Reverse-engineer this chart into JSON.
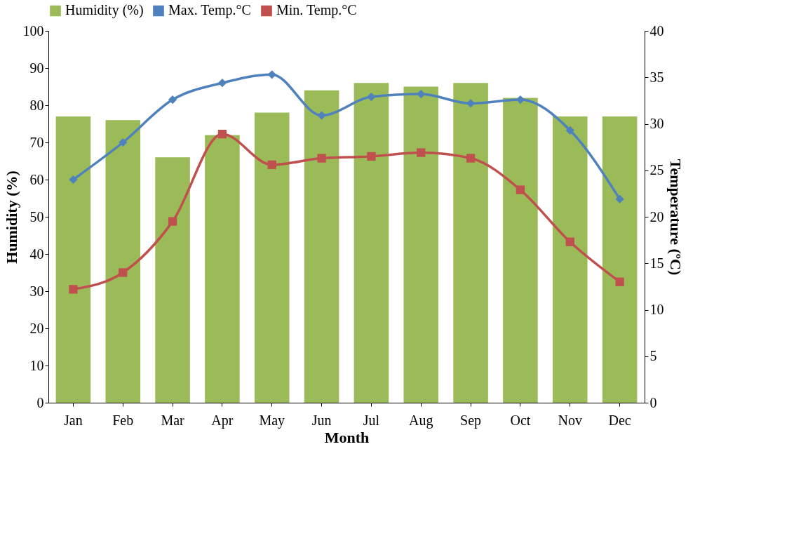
{
  "chart_data": {
    "type": "bar",
    "xlabel": "Month",
    "ylabel": "Humidity (%)",
    "y2label": "Temperature (ºC)",
    "categories": [
      "Jan",
      "Feb",
      "Mar",
      "Apr",
      "May",
      "Jun",
      "Jul",
      "Aug",
      "Sep",
      "Oct",
      "Nov",
      "Dec"
    ],
    "series": [
      {
        "name": "Humidity (%)",
        "color": "#9bbb59",
        "values": [
          77,
          76,
          66,
          72,
          78,
          84,
          86,
          85,
          86,
          82,
          77,
          77
        ]
      },
      {
        "name": "Max. Temp.°C",
        "type": "line",
        "axis": "y2",
        "marker": "diamond",
        "color": "#4f81bd",
        "values": [
          24,
          28,
          32.6,
          34.4,
          35.3,
          30.9,
          32.9,
          33.2,
          32.2,
          32.6,
          29.3,
          21.9
        ]
      },
      {
        "name": "Min. Temp.°C",
        "type": "line",
        "axis": "y2",
        "marker": "square",
        "color": "#c0504d",
        "values": [
          12.2,
          14,
          19.5,
          28.9,
          25.6,
          26.3,
          26.5,
          26.9,
          26.3,
          22.9,
          17.3,
          13
        ]
      }
    ],
    "ylim": [
      0,
      100
    ],
    "yticks": [
      0,
      10,
      20,
      30,
      40,
      50,
      60,
      70,
      80,
      90,
      100
    ],
    "y2lim": [
      0,
      40
    ],
    "y2ticks": [
      0,
      5,
      10,
      15,
      20,
      25,
      30,
      35,
      40
    ],
    "grid": false,
    "legend": "top"
  }
}
